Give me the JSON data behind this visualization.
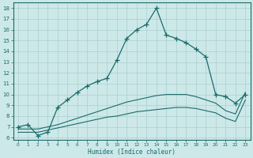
{
  "xlabel": "Humidex (Indice chaleur)",
  "xlim": [
    -0.5,
    23.5
  ],
  "ylim": [
    5.8,
    18.5
  ],
  "yticks": [
    6,
    7,
    8,
    9,
    10,
    11,
    12,
    13,
    14,
    15,
    16,
    17,
    18
  ],
  "xticks": [
    0,
    1,
    2,
    3,
    4,
    5,
    6,
    7,
    8,
    9,
    10,
    11,
    12,
    13,
    14,
    15,
    16,
    17,
    18,
    19,
    20,
    21,
    22,
    23
  ],
  "bg_color": "#cde8e8",
  "line_color": "#1a6b6b",
  "grid_color": "#aacfcf",
  "main_line": [
    7.0,
    7.2,
    6.2,
    6.5,
    8.8,
    9.5,
    10.2,
    10.8,
    11.2,
    11.5,
    13.2,
    15.2,
    16.0,
    16.5,
    18.0,
    15.5,
    15.2,
    14.8,
    14.2,
    13.5,
    10.0,
    9.8,
    9.2,
    10.0
  ],
  "line2": [
    6.8,
    6.8,
    6.8,
    7.0,
    7.2,
    7.5,
    7.8,
    8.1,
    8.4,
    8.7,
    9.0,
    9.3,
    9.5,
    9.7,
    9.9,
    10.0,
    10.0,
    10.0,
    9.8,
    9.5,
    9.2,
    8.5,
    8.2,
    10.2
  ],
  "line3": [
    6.5,
    6.5,
    6.5,
    6.7,
    6.9,
    7.1,
    7.3,
    7.5,
    7.7,
    7.9,
    8.0,
    8.2,
    8.4,
    8.5,
    8.6,
    8.7,
    8.8,
    8.8,
    8.7,
    8.5,
    8.3,
    7.8,
    7.5,
    9.5
  ]
}
